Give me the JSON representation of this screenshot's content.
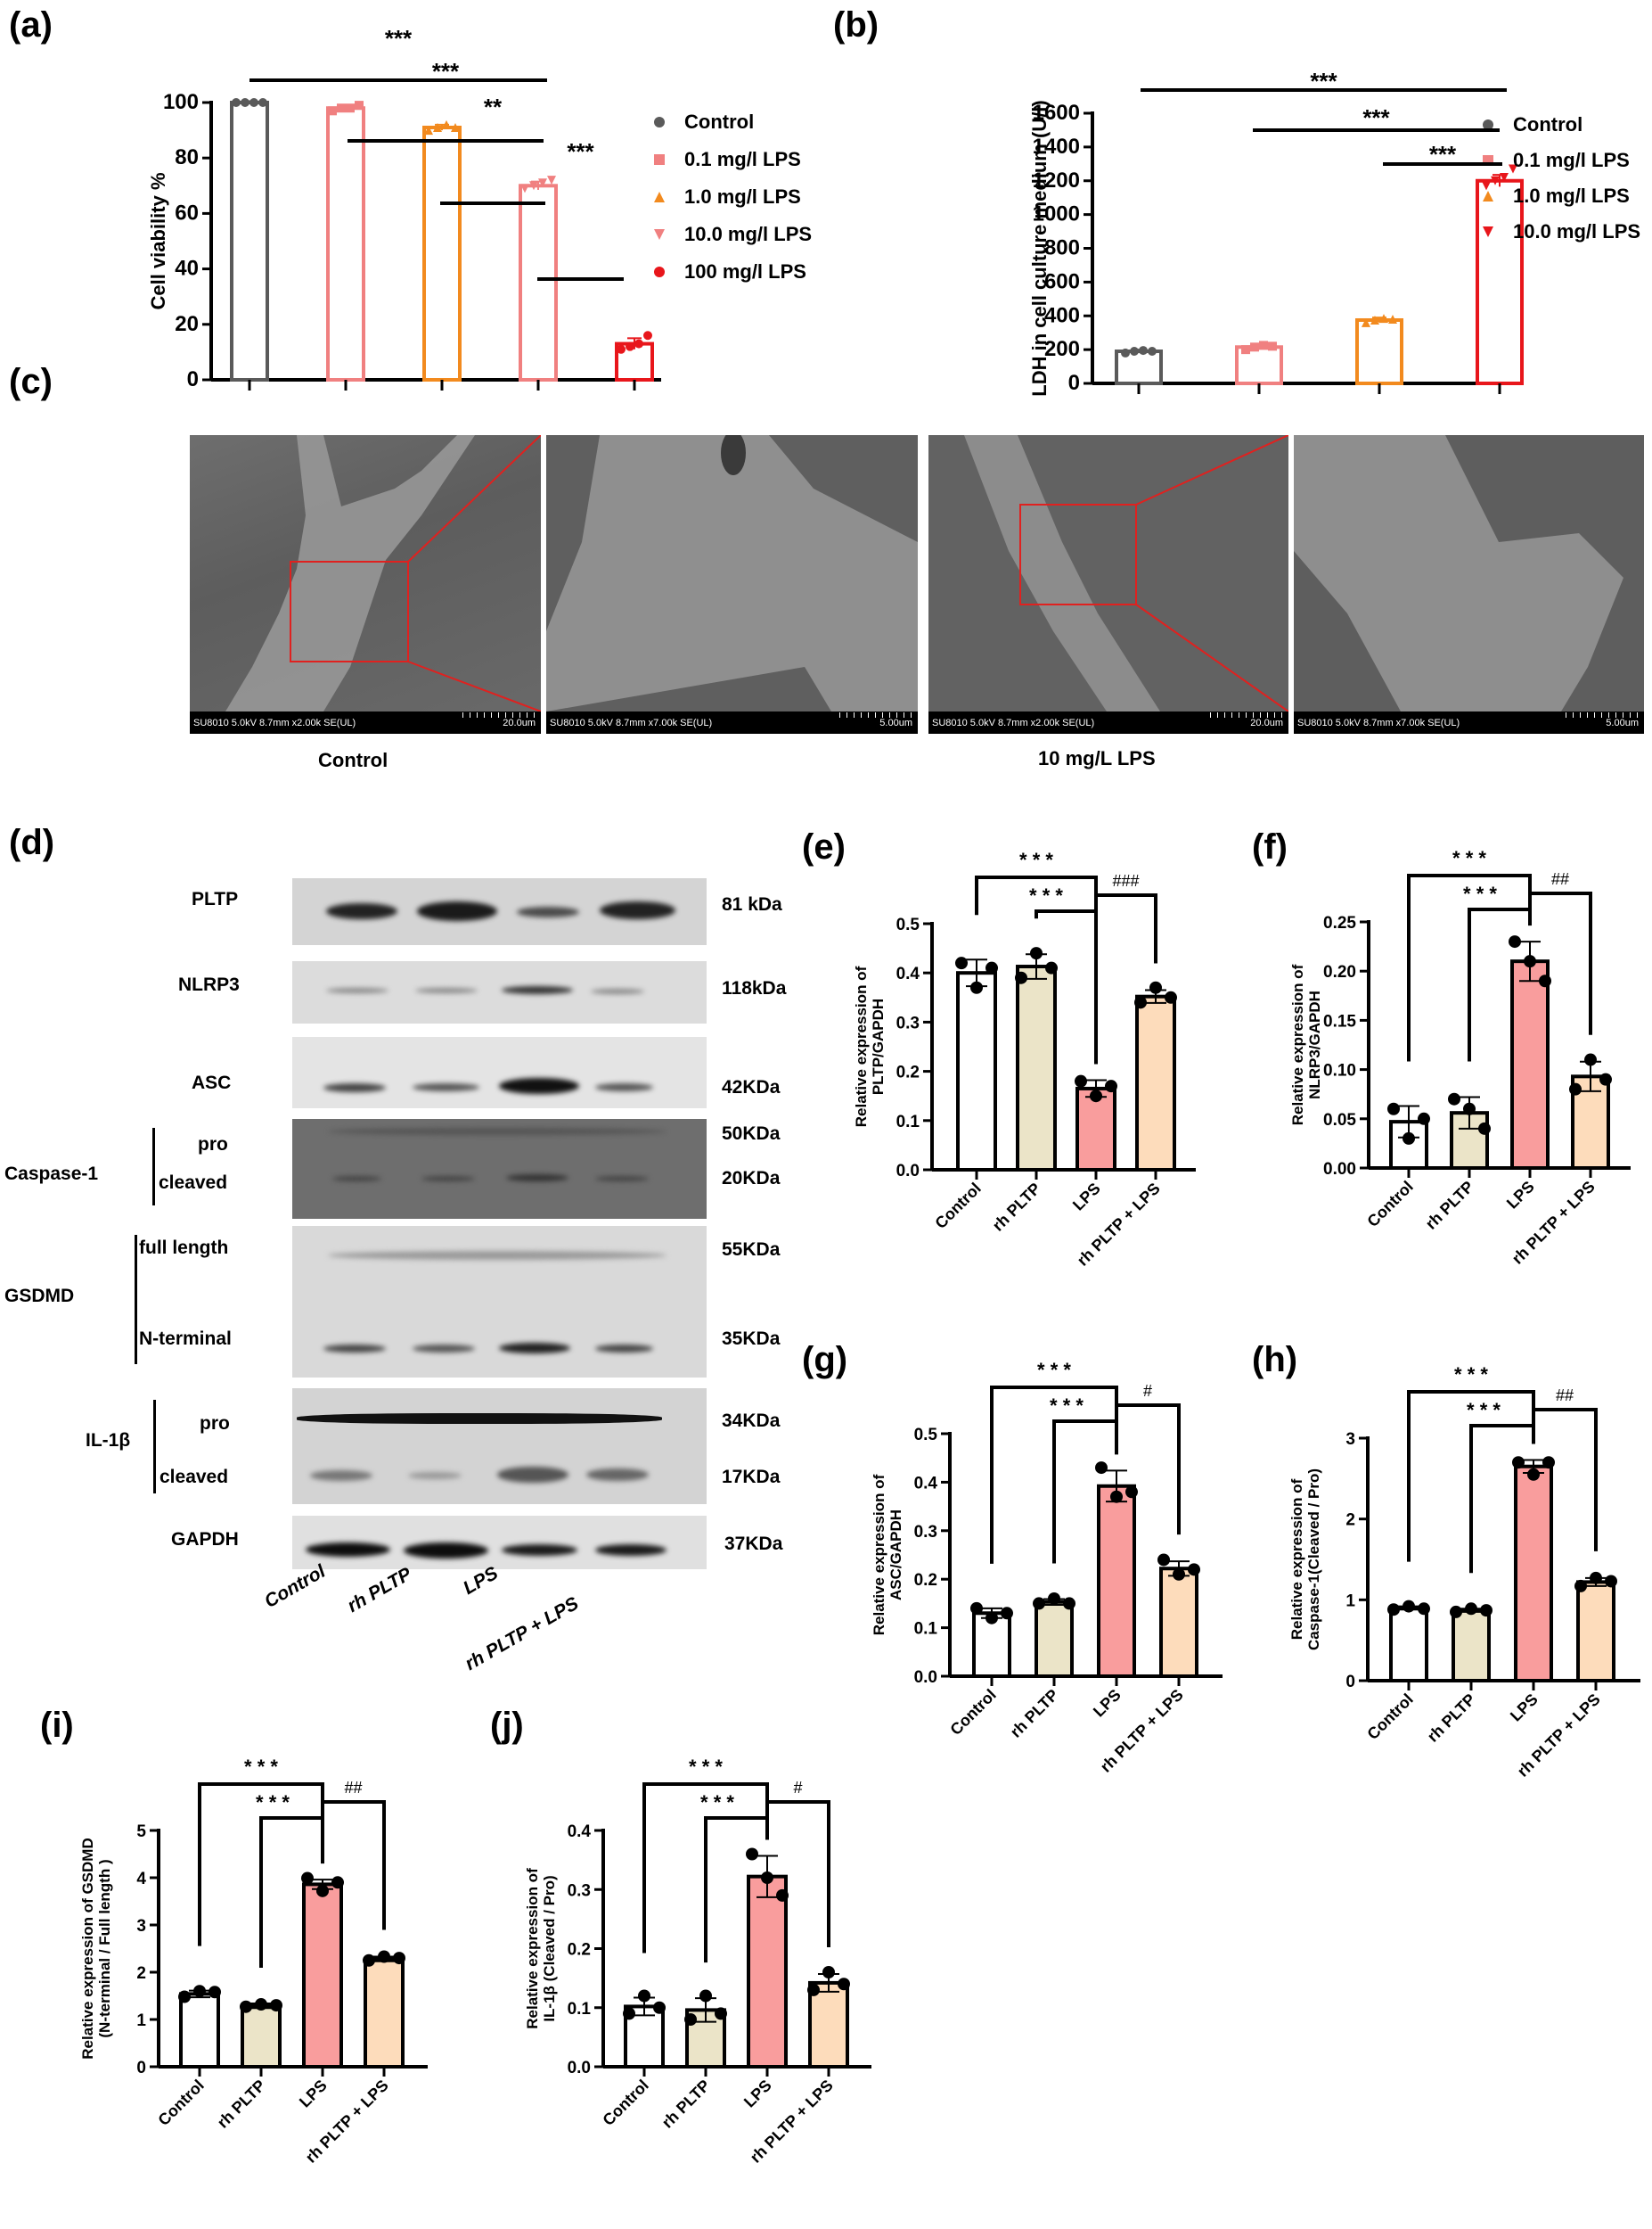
{
  "figure": {
    "panel_labels": [
      "(a)",
      "(b)",
      "(c)",
      "(d)",
      "(e)",
      "(f)",
      "(g)",
      "(h)",
      "(i)",
      "(j)"
    ]
  },
  "sem": {
    "images": [
      {
        "meta": "SU8010 5.0kV 8.7mm x2.00k SE(UL)",
        "scale": "20.0um",
        "condition": "Control",
        "zoom": "overview"
      },
      {
        "meta": "SU8010 5.0kV 8.7mm x7.00k SE(UL)",
        "scale": "5.00um",
        "condition": "Control",
        "zoom": "magnified"
      },
      {
        "meta": "SU8010 5.0kV 8.7mm x2.00k SE(UL)",
        "scale": "20.0um",
        "condition": "10 mg/L LPS",
        "zoom": "overview"
      },
      {
        "meta": "SU8010 5.0kV 8.7mm x7.00k SE(UL)",
        "scale": "5.00um",
        "condition": "10 mg/L LPS",
        "zoom": "magnified"
      }
    ],
    "captions": [
      "Control",
      "10 mg/L LPS"
    ],
    "highlight_color": "#e0211f"
  },
  "western_blot": {
    "lanes": [
      "Control",
      "rh PLTP",
      "LPS",
      "rh PLTP + LPS"
    ],
    "rows": [
      {
        "protein": "PLTP",
        "kda": [
          "81 kDa"
        ]
      },
      {
        "protein": "NLRP3",
        "kda": [
          "118kDa"
        ]
      },
      {
        "protein": "ASC",
        "kda": [
          "42KDa"
        ]
      },
      {
        "protein": "Caspase-1",
        "forms": [
          "pro",
          "cleaved"
        ],
        "kda": [
          "50KDa",
          "20KDa"
        ]
      },
      {
        "protein": "GSDMD",
        "forms": [
          "full length",
          "N-terminal"
        ],
        "kda": [
          "55KDa",
          "35KDa"
        ]
      },
      {
        "protein": "IL-1β",
        "forms": [
          "pro",
          "cleaved"
        ],
        "kda": [
          "34KDa",
          "17KDa"
        ]
      },
      {
        "protein": "GAPDH",
        "kda": [
          "37KDa"
        ]
      }
    ]
  },
  "chart_data": [
    {
      "id": "a",
      "type": "bar",
      "title": "",
      "categories": [
        "Control",
        "0.1 mg/l LPS",
        "1.0 mg/l LPS",
        "10.0 mg/l LPS",
        "100 mg/l LPS"
      ],
      "values": [
        100,
        98,
        91,
        70,
        13
      ],
      "errors": [
        0.5,
        1,
        1,
        1.5,
        2
      ],
      "points": [
        [
          100,
          100,
          100,
          100
        ],
        [
          97,
          98,
          98,
          99
        ],
        [
          90,
          91,
          92,
          91
        ],
        [
          69,
          70,
          71,
          72
        ],
        [
          11,
          12,
          13,
          16
        ]
      ],
      "colors": [
        "#5a5a5a",
        "#f08080",
        "#f28a1e",
        "#f08080",
        "#e8161b"
      ],
      "markers": [
        "circle",
        "square",
        "triangle-up",
        "triangle-down",
        "circle"
      ],
      "xlabel": "",
      "ylabel": "Cell viability %",
      "ylim": [
        0,
        100
      ],
      "yticks": [
        "0",
        "20",
        "40",
        "60",
        "80",
        "100"
      ],
      "legend": {
        "position": "right",
        "entries": [
          "Control",
          "0.1 mg/l LPS",
          "1.0 mg/l LPS",
          "10.0 mg/l LPS",
          "100 mg/l LPS"
        ]
      },
      "significance": [
        {
          "from": 0,
          "to": 3,
          "label": "***"
        },
        {
          "from": 1,
          "to": 3,
          "label": "***"
        },
        {
          "from": 2,
          "to": 3,
          "label": "**"
        },
        {
          "from": 3,
          "to": 4,
          "label": "***"
        }
      ],
      "grid": false
    },
    {
      "id": "b",
      "type": "bar",
      "title": "",
      "categories": [
        "Control",
        "0.1 mg/l LPS",
        "1.0 mg/l LPS",
        "10.0 mg/l LPS"
      ],
      "values": [
        190,
        215,
        375,
        1200
      ],
      "errors": [
        10,
        15,
        15,
        35
      ],
      "points": [
        [
          180,
          190,
          195,
          190
        ],
        [
          200,
          215,
          225,
          220
        ],
        [
          360,
          375,
          385,
          380
        ],
        [
          1170,
          1200,
          1220,
          1270
        ]
      ],
      "colors": [
        "#5a5a5a",
        "#f08080",
        "#f28a1e",
        "#e8161b"
      ],
      "markers": [
        "circle",
        "square",
        "triangle-up",
        "triangle-down"
      ],
      "xlabel": "",
      "ylabel": "LDH in cell culture medium (U/l)",
      "ylim": [
        0,
        1600
      ],
      "yticks": [
        "0",
        "200",
        "400",
        "600",
        "800",
        "1000",
        "1200",
        "1400",
        "1600"
      ],
      "legend": {
        "position": "right",
        "entries": [
          "Control",
          "0.1 mg/l LPS",
          "1.0 mg/l LPS",
          "10.0 mg/l LPS"
        ]
      },
      "significance": [
        {
          "from": 0,
          "to": 3,
          "label": "***"
        },
        {
          "from": 1,
          "to": 3,
          "label": "***"
        },
        {
          "from": 2,
          "to": 3,
          "label": "***"
        }
      ],
      "grid": false
    },
    {
      "id": "e",
      "type": "bar",
      "title": "",
      "categories": [
        "Control",
        "rh  PLTP",
        "LPS",
        "rh PLTP + LPS"
      ],
      "values": [
        0.4,
        0.413,
        0.165,
        0.352
      ],
      "errors": [
        0.027,
        0.025,
        0.017,
        0.013
      ],
      "points": [
        [
          0.42,
          0.37,
          0.41
        ],
        [
          0.39,
          0.44,
          0.41
        ],
        [
          0.18,
          0.15,
          0.17
        ],
        [
          0.34,
          0.37,
          0.35
        ]
      ],
      "colors": [
        "#ffffff",
        "#ebe4c8",
        "#f99d9d",
        "#fddcbb"
      ],
      "xlabel": "",
      "ylabel": "Relative expression of PLTP/GAPDH",
      "ylim": [
        0,
        0.5
      ],
      "yticks": [
        "0.0",
        "0.1",
        "0.2",
        "0.3",
        "0.4",
        "0.5"
      ],
      "significance": [
        {
          "from": 0,
          "to": 2,
          "label": "***",
          "level": 2
        },
        {
          "from": 1,
          "to": 2,
          "label": "***",
          "level": 1
        },
        {
          "from": 2,
          "to": 3,
          "label": "###",
          "level": 1.6,
          "hash": true
        }
      ]
    },
    {
      "id": "f",
      "type": "bar",
      "title": "",
      "categories": [
        "Control",
        "rh  PLTP",
        "LPS",
        "rh PLTP + LPS"
      ],
      "values": [
        0.047,
        0.056,
        0.21,
        0.093
      ],
      "errors": [
        0.016,
        0.016,
        0.02,
        0.015
      ],
      "points": [
        [
          0.06,
          0.03,
          0.05
        ],
        [
          0.07,
          0.06,
          0.04
        ],
        [
          0.23,
          0.21,
          0.19
        ],
        [
          0.08,
          0.11,
          0.09
        ]
      ],
      "colors": [
        "#ffffff",
        "#ebe4c8",
        "#f99d9d",
        "#fddcbb"
      ],
      "xlabel": "",
      "ylabel": "Relative expression of NLRP3/GAPDH",
      "ylim": [
        0,
        0.25
      ],
      "yticks": [
        "0.00",
        "0.05",
        "0.10",
        "0.15",
        "0.20",
        "0.25"
      ],
      "significance": [
        {
          "from": 0,
          "to": 2,
          "label": "***",
          "level": 2
        },
        {
          "from": 1,
          "to": 2,
          "label": "***",
          "level": 1
        },
        {
          "from": 2,
          "to": 3,
          "label": "##",
          "level": 1.6,
          "hash": true
        }
      ]
    },
    {
      "id": "g",
      "type": "bar",
      "title": "",
      "categories": [
        "Control",
        "rh  PLTP",
        "LPS",
        "rh PLTP + LPS"
      ],
      "values": [
        0.13,
        0.153,
        0.392,
        0.222
      ],
      "errors": [
        0.01,
        0.006,
        0.032,
        0.015
      ],
      "points": [
        [
          0.14,
          0.12,
          0.13
        ],
        [
          0.15,
          0.16,
          0.15
        ],
        [
          0.43,
          0.37,
          0.38
        ],
        [
          0.24,
          0.21,
          0.22
        ]
      ],
      "colors": [
        "#ffffff",
        "#ebe4c8",
        "#f99d9d",
        "#fddcbb"
      ],
      "xlabel": "",
      "ylabel": "Relative expression of ASC/GAPDH",
      "ylim": [
        0,
        0.5
      ],
      "yticks": [
        "0.0",
        "0.1",
        "0.2",
        "0.3",
        "0.4",
        "0.5"
      ],
      "significance": [
        {
          "from": 0,
          "to": 2,
          "label": "***",
          "level": 2
        },
        {
          "from": 1,
          "to": 2,
          "label": "***",
          "level": 1
        },
        {
          "from": 2,
          "to": 3,
          "label": "#",
          "level": 1.6,
          "hash": true
        }
      ]
    },
    {
      "id": "h",
      "type": "bar",
      "title": "",
      "categories": [
        "Control",
        "rh  PLTP",
        "LPS",
        "rh PLTP + LPS"
      ],
      "values": [
        0.9,
        0.87,
        2.65,
        1.22
      ],
      "errors": [
        0.02,
        0.02,
        0.08,
        0.05
      ],
      "points": [
        [
          0.88,
          0.92,
          0.89
        ],
        [
          0.85,
          0.89,
          0.87
        ],
        [
          2.7,
          2.55,
          2.7
        ],
        [
          1.17,
          1.27,
          1.23
        ]
      ],
      "colors": [
        "#ffffff",
        "#ebe4c8",
        "#f99d9d",
        "#fddcbb"
      ],
      "xlabel": "",
      "ylabel": "Relative expression of Caspase-1(Cleaved / Pro)",
      "ylim": [
        0,
        3
      ],
      "yticks": [
        "0",
        "1",
        "2",
        "3"
      ],
      "significance": [
        {
          "from": 0,
          "to": 2,
          "label": "***",
          "level": 2
        },
        {
          "from": 1,
          "to": 2,
          "label": "***",
          "level": 1
        },
        {
          "from": 2,
          "to": 3,
          "label": "##",
          "level": 1.6,
          "hash": true
        }
      ]
    },
    {
      "id": "i",
      "type": "bar",
      "title": "",
      "categories": [
        "Control",
        "rh  PLTP",
        "LPS",
        "rh PLTP + LPS"
      ],
      "values": [
        1.54,
        1.29,
        3.86,
        2.28
      ],
      "errors": [
        0.07,
        0.05,
        0.1,
        0.05
      ],
      "points": [
        [
          1.48,
          1.6,
          1.58
        ],
        [
          1.27,
          1.32,
          1.3
        ],
        [
          3.99,
          3.72,
          3.9
        ],
        [
          2.25,
          2.33,
          2.3
        ]
      ],
      "colors": [
        "#ffffff",
        "#ebe4c8",
        "#f99d9d",
        "#fddcbb"
      ],
      "xlabel": "",
      "ylabel": "Relative expression of GSDMD (N-terminal / Full length )",
      "ylim": [
        0,
        5
      ],
      "yticks": [
        "0",
        "1",
        "2",
        "3",
        "4",
        "5"
      ],
      "significance": [
        {
          "from": 0,
          "to": 2,
          "label": "***",
          "level": 2
        },
        {
          "from": 1,
          "to": 2,
          "label": "***",
          "level": 1
        },
        {
          "from": 2,
          "to": 3,
          "label": "##",
          "level": 1.6,
          "hash": true
        }
      ]
    },
    {
      "id": "j",
      "type": "bar",
      "title": "",
      "categories": [
        "Control",
        "rh  PLTP",
        "LPS",
        "rh PLTP + LPS"
      ],
      "values": [
        0.102,
        0.096,
        0.322,
        0.142
      ],
      "errors": [
        0.015,
        0.02,
        0.035,
        0.015
      ],
      "points": [
        [
          0.09,
          0.12,
          0.1
        ],
        [
          0.08,
          0.12,
          0.09
        ],
        [
          0.36,
          0.32,
          0.29
        ],
        [
          0.13,
          0.16,
          0.14
        ]
      ],
      "colors": [
        "#ffffff",
        "#ebe4c8",
        "#f99d9d",
        "#fddcbb"
      ],
      "xlabel": "",
      "ylabel": "Relative expression of IL-1β (Cleaved / Pro)",
      "ylim": [
        0,
        0.4
      ],
      "yticks": [
        "0.0",
        "0.1",
        "0.2",
        "0.3",
        "0.4"
      ],
      "significance": [
        {
          "from": 0,
          "to": 2,
          "label": "***",
          "level": 2
        },
        {
          "from": 1,
          "to": 2,
          "label": "***",
          "level": 1
        },
        {
          "from": 2,
          "to": 3,
          "label": "#",
          "level": 1.6,
          "hash": true
        }
      ]
    }
  ]
}
